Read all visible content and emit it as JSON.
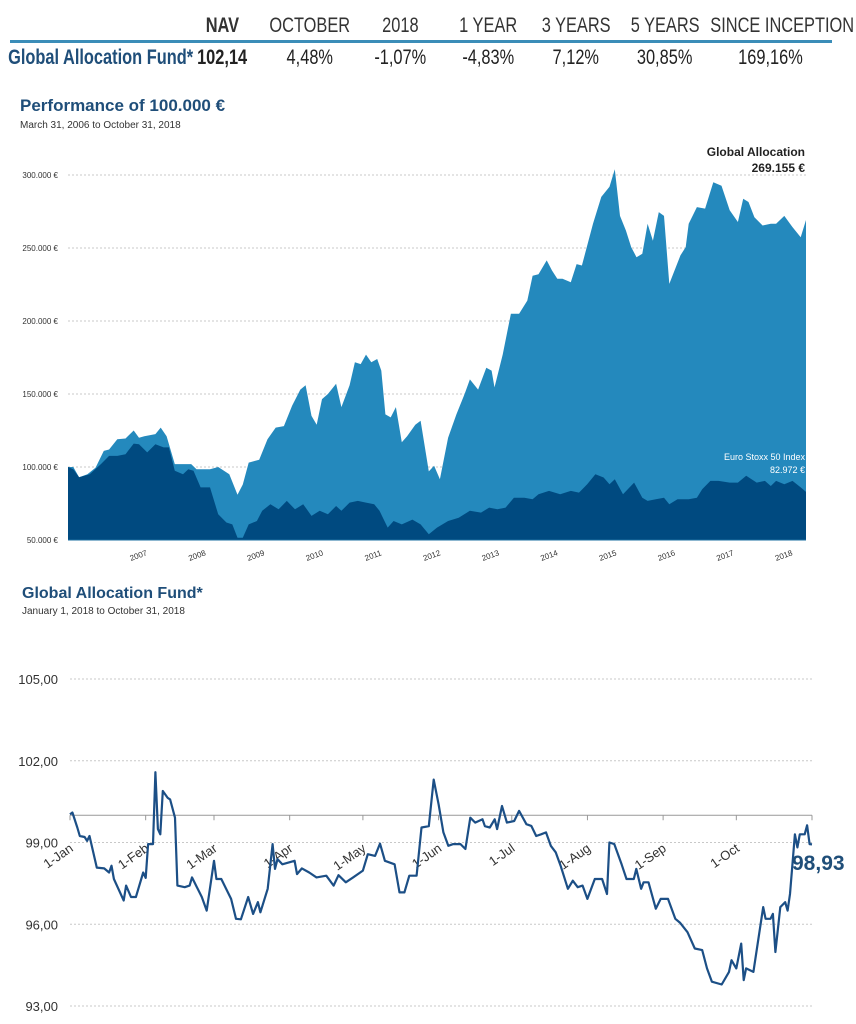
{
  "table": {
    "headers": [
      "NAV",
      "OCTOBER",
      "2018",
      "1 YEAR",
      "3 YEARS",
      "5 YEARS",
      "SINCE INCEPTION"
    ],
    "row_label": "Global Allocation Fund*",
    "values": [
      "102,14",
      "4,48%",
      "-1,07%",
      "-4,83%",
      "7,12%",
      "30,85%",
      "169,16%"
    ]
  },
  "colors": {
    "title": "#1f4e79",
    "fund_area": "#2489bd",
    "index_area": "#004a80",
    "line": "#1c4f86",
    "rule": "#3b8db8"
  },
  "chart_data": [
    {
      "type": "area",
      "title": "Performance of 100.000 €",
      "subtitle": "March 31, 2006 to October 31, 2018",
      "ylim": [
        50000,
        300000
      ],
      "yticks": [
        50000,
        100000,
        150000,
        200000,
        250000,
        300000
      ],
      "ytick_labels": [
        "50.000 €",
        "100.000 €",
        "150.000 €",
        "200.000 €",
        "250.000 €",
        "300.000 €"
      ],
      "xlim": [
        2006.25,
        2018.83
      ],
      "xtick_labels": [
        "2007",
        "2008",
        "2009",
        "2010",
        "2011",
        "2012",
        "2013",
        "2014",
        "2015",
        "2016",
        "2017",
        "2018"
      ],
      "grid": true,
      "series": [
        {
          "name": "Global Allocation",
          "end_label": "269.155 €",
          "x": [
            2006.25,
            2006.34,
            2006.44,
            2006.58,
            2006.72,
            2006.86,
            2006.95,
            2007.09,
            2007.23,
            2007.37,
            2007.46,
            2007.55,
            2007.74,
            2007.83,
            2007.93,
            2008.07,
            2008.35,
            2008.44,
            2008.67,
            2008.81,
            2009.0,
            2009.14,
            2009.23,
            2009.33,
            2009.51,
            2009.65,
            2009.79,
            2009.93,
            2010.07,
            2010.21,
            2010.3,
            2010.4,
            2010.49,
            2010.58,
            2010.68,
            2010.82,
            2010.91,
            2011.05,
            2011.14,
            2011.24,
            2011.33,
            2011.42,
            2011.52,
            2011.59,
            2011.66,
            2011.75,
            2011.84,
            2011.94,
            2012.03,
            2012.17,
            2012.26,
            2012.4,
            2012.49,
            2012.59,
            2012.73,
            2012.87,
            2013.01,
            2013.1,
            2013.24,
            2013.38,
            2013.47,
            2013.52,
            2013.66,
            2013.8,
            2013.94,
            2014.08,
            2014.17,
            2014.27,
            2014.41,
            2014.5,
            2014.59,
            2014.68,
            2014.82,
            2014.92,
            2015.01,
            2015.2,
            2015.34,
            2015.48,
            2015.57,
            2015.66,
            2015.76,
            2015.85,
            2015.94,
            2016.04,
            2016.13,
            2016.22,
            2016.32,
            2016.41,
            2016.5,
            2016.69,
            2016.78,
            2016.83,
            2016.97,
            2017.11,
            2017.25,
            2017.39,
            2017.53,
            2017.67,
            2017.76,
            2017.85,
            2017.95,
            2018.09,
            2018.23,
            2018.32,
            2018.46,
            2018.6,
            2018.74,
            2018.83
          ],
          "y": [
            100000,
            100000,
            93000,
            95000,
            99600,
            111000,
            112000,
            119000,
            119500,
            125000,
            120000,
            121000,
            122500,
            127000,
            121000,
            102000,
            102000,
            98500,
            98500,
            100000,
            95000,
            81000,
            88000,
            103000,
            105000,
            119000,
            127000,
            128000,
            142000,
            153000,
            156000,
            135000,
            129000,
            146500,
            150000,
            157000,
            141000,
            156000,
            171700,
            170500,
            177000,
            171700,
            174000,
            166000,
            136000,
            134000,
            141000,
            117000,
            121000,
            129000,
            131700,
            97000,
            100800,
            91600,
            120000,
            136000,
            150000,
            160000,
            153000,
            168000,
            166000,
            154500,
            177000,
            205000,
            205000,
            214000,
            231000,
            232000,
            241500,
            234600,
            229000,
            229000,
            226600,
            239000,
            238000,
            266600,
            285000,
            292000,
            304000,
            272000,
            262000,
            250600,
            243700,
            246000,
            266600,
            255000,
            274600,
            272000,
            225400,
            245000,
            250600,
            266600,
            278000,
            277000,
            295000,
            292600,
            275800,
            267800,
            283800,
            281500,
            271000,
            265400,
            266600,
            266600,
            272000,
            264300,
            257400,
            269155
          ]
        },
        {
          "name": "Euro Stoxx 50 Index",
          "end_label": "82.972 €",
          "x": [
            2006.25,
            2006.34,
            2006.44,
            2006.62,
            2006.81,
            2006.95,
            2007.09,
            2007.23,
            2007.37,
            2007.46,
            2007.6,
            2007.74,
            2007.88,
            2007.97,
            2008.07,
            2008.21,
            2008.3,
            2008.39,
            2008.51,
            2008.67,
            2008.81,
            2008.95,
            2009.05,
            2009.14,
            2009.23,
            2009.33,
            2009.47,
            2009.56,
            2009.7,
            2009.84,
            2009.98,
            2010.12,
            2010.26,
            2010.4,
            2010.54,
            2010.68,
            2010.82,
            2010.91,
            2011.05,
            2011.19,
            2011.33,
            2011.47,
            2011.56,
            2011.7,
            2011.8,
            2011.94,
            2012.12,
            2012.26,
            2012.4,
            2012.54,
            2012.73,
            2012.91,
            2013.1,
            2013.29,
            2013.43,
            2013.57,
            2013.71,
            2013.85,
            2014.03,
            2014.17,
            2014.27,
            2014.45,
            2014.64,
            2014.82,
            2014.96,
            2015.1,
            2015.24,
            2015.38,
            2015.48,
            2015.57,
            2015.71,
            2015.9,
            2016.04,
            2016.13,
            2016.27,
            2016.41,
            2016.5,
            2016.64,
            2016.83,
            2016.97,
            2017.06,
            2017.2,
            2017.34,
            2017.53,
            2017.67,
            2017.81,
            2017.99,
            2018.13,
            2018.23,
            2018.32,
            2018.46,
            2018.6,
            2018.74,
            2018.83
          ],
          "y": [
            100000,
            98500,
            93000,
            95000,
            102000,
            107600,
            107600,
            108800,
            116000,
            115600,
            110000,
            115600,
            113400,
            113400,
            97400,
            95000,
            98500,
            97400,
            86000,
            86000,
            67600,
            62000,
            60700,
            51600,
            51600,
            60700,
            63000,
            70000,
            74500,
            71000,
            76800,
            71000,
            74500,
            66500,
            70000,
            67600,
            73300,
            70000,
            75600,
            76800,
            75600,
            74500,
            70000,
            58500,
            63000,
            60700,
            64000,
            60700,
            53900,
            58500,
            63000,
            65300,
            70000,
            68800,
            72200,
            71000,
            72200,
            79000,
            79000,
            77900,
            81300,
            83600,
            81300,
            83600,
            82500,
            88200,
            95000,
            92800,
            88200,
            91600,
            81300,
            89300,
            79000,
            76800,
            77900,
            79000,
            74500,
            77900,
            77900,
            79000,
            84800,
            90500,
            90500,
            89300,
            89300,
            94000,
            89300,
            90500,
            87000,
            90500,
            88200,
            90500,
            86000,
            82972
          ]
        }
      ]
    },
    {
      "type": "line",
      "title": "Global Allocation Fund*",
      "subtitle": "January 1, 2018 to October 31, 2018",
      "ylim": [
        93,
        105
      ],
      "yticks": [
        93,
        96,
        99,
        102,
        105
      ],
      "ytick_labels": [
        "93,00",
        "96,00",
        "99,00",
        "102,00",
        "105,00"
      ],
      "x_axis_crosses_at": 100,
      "xticks_day": [
        0,
        31,
        59,
        90,
        120,
        151,
        181,
        212,
        243,
        273,
        304
      ],
      "xtick_labels": [
        "1-Jan",
        "1-Feb",
        "1-Mar",
        "1-Apr",
        "1-May",
        "1-Jun",
        "1-Jul",
        "1-Aug",
        "1-Sep",
        "1-Oct"
      ],
      "end_label": "98,93",
      "grid": true,
      "series": [
        {
          "name": "Global Allocation Fund",
          "day": [
            0,
            1,
            3,
            4,
            6,
            7,
            8,
            11,
            14,
            16,
            17,
            18,
            22,
            23,
            25,
            27,
            30,
            31,
            32,
            34,
            35,
            36,
            37,
            38,
            40,
            41,
            43,
            44,
            47,
            49,
            50,
            52,
            54,
            56,
            59,
            60,
            62,
            66,
            68,
            70,
            73,
            75,
            77,
            78,
            81,
            83,
            84,
            85,
            87,
            92,
            93,
            95,
            98,
            101,
            105,
            108,
            110,
            113,
            116,
            120,
            122,
            125,
            127,
            129,
            133,
            135,
            137,
            139,
            142,
            144,
            147,
            149,
            151,
            153,
            155,
            157,
            160,
            162,
            164,
            166,
            169,
            170,
            172,
            174,
            175,
            177,
            179,
            182,
            184,
            187,
            189,
            191,
            193,
            195,
            197,
            199,
            201,
            204,
            206,
            208,
            210,
            212,
            215,
            218,
            220,
            221,
            223,
            226,
            228,
            231,
            232,
            234,
            235,
            237,
            240,
            242,
            245,
            248,
            250,
            253,
            256,
            259,
            261,
            263,
            267,
            270,
            271,
            273,
            275,
            276,
            277,
            280,
            284,
            285,
            287,
            288,
            289,
            291,
            293,
            294,
            295,
            297,
            298,
            299,
            301,
            302,
            303,
            304
          ],
          "value": [
            100.03,
            100.1,
            99.55,
            99.24,
            99.2,
            99.06,
            99.24,
            98.08,
            98.05,
            97.9,
            98.15,
            97.66,
            96.87,
            97.42,
            97.0,
            97.0,
            97.9,
            97.7,
            98.94,
            98.94,
            101.58,
            99.49,
            99.3,
            100.89,
            100.64,
            100.58,
            99.91,
            97.42,
            97.36,
            97.42,
            97.72,
            97.36,
            97.0,
            96.5,
            98.33,
            97.66,
            97.66,
            96.93,
            96.2,
            96.18,
            97.0,
            96.38,
            96.81,
            96.44,
            97.3,
            98.94,
            98.03,
            98.39,
            98.2,
            98.33,
            97.84,
            98.05,
            97.9,
            97.72,
            97.78,
            97.42,
            97.8,
            97.54,
            97.72,
            97.97,
            98.57,
            98.51,
            98.96,
            98.33,
            98.2,
            97.17,
            97.17,
            97.78,
            97.78,
            99.55,
            99.6,
            101.31,
            100.4,
            99.37,
            98.88,
            98.94,
            98.94,
            98.76,
            99.91,
            99.73,
            99.85,
            99.6,
            99.55,
            99.85,
            99.49,
            100.34,
            99.73,
            99.79,
            100.16,
            99.67,
            99.61,
            99.24,
            99.3,
            99.37,
            98.88,
            98.64,
            98.15,
            97.3,
            97.6,
            97.36,
            97.42,
            96.93,
            97.66,
            97.66,
            97.11,
            99.0,
            98.94,
            98.2,
            97.66,
            97.66,
            98.03,
            97.3,
            97.54,
            97.54,
            96.57,
            96.93,
            96.93,
            96.2,
            96.05,
            95.71,
            95.11,
            95.05,
            94.38,
            93.89,
            93.79,
            94.25,
            94.68,
            94.38,
            95.29,
            93.95,
            94.38,
            94.25,
            96.63,
            96.2,
            96.2,
            96.38,
            94.98,
            96.63,
            96.81,
            96.5,
            97.11,
            99.3,
            98.82,
            99.3,
            99.3,
            99.63,
            98.94,
            98.93
          ]
        }
      ]
    }
  ]
}
